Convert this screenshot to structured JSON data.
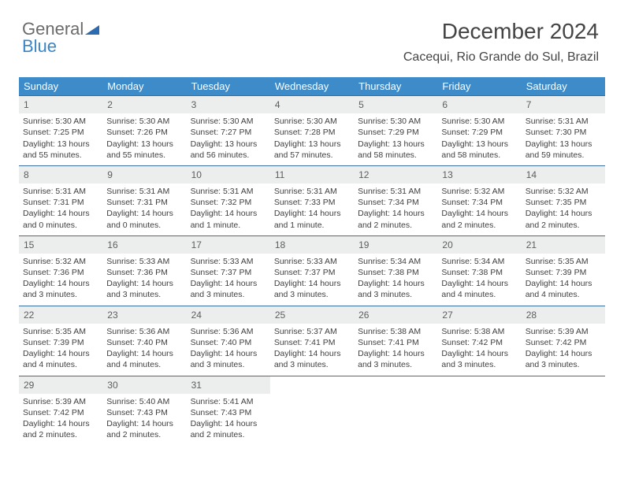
{
  "logo": {
    "text1": "General",
    "text2": "Blue",
    "icon_color": "#2c6bb0"
  },
  "title": "December 2024",
  "subtitle": "Cacequi, Rio Grande do Sul, Brazil",
  "colors": {
    "header_bg": "#3d8bc9",
    "header_text": "#ffffff",
    "daynum_bg": "#eceded",
    "border": "#3d6ea3",
    "text": "#404040"
  },
  "day_headers": [
    "Sunday",
    "Monday",
    "Tuesday",
    "Wednesday",
    "Thursday",
    "Friday",
    "Saturday"
  ],
  "weeks": [
    [
      {
        "n": "1",
        "sr": "5:30 AM",
        "ss": "7:25 PM",
        "dl": "13 hours and 55 minutes."
      },
      {
        "n": "2",
        "sr": "5:30 AM",
        "ss": "7:26 PM",
        "dl": "13 hours and 55 minutes."
      },
      {
        "n": "3",
        "sr": "5:30 AM",
        "ss": "7:27 PM",
        "dl": "13 hours and 56 minutes."
      },
      {
        "n": "4",
        "sr": "5:30 AM",
        "ss": "7:28 PM",
        "dl": "13 hours and 57 minutes."
      },
      {
        "n": "5",
        "sr": "5:30 AM",
        "ss": "7:29 PM",
        "dl": "13 hours and 58 minutes."
      },
      {
        "n": "6",
        "sr": "5:30 AM",
        "ss": "7:29 PM",
        "dl": "13 hours and 58 minutes."
      },
      {
        "n": "7",
        "sr": "5:31 AM",
        "ss": "7:30 PM",
        "dl": "13 hours and 59 minutes."
      }
    ],
    [
      {
        "n": "8",
        "sr": "5:31 AM",
        "ss": "7:31 PM",
        "dl": "14 hours and 0 minutes."
      },
      {
        "n": "9",
        "sr": "5:31 AM",
        "ss": "7:31 PM",
        "dl": "14 hours and 0 minutes."
      },
      {
        "n": "10",
        "sr": "5:31 AM",
        "ss": "7:32 PM",
        "dl": "14 hours and 1 minute."
      },
      {
        "n": "11",
        "sr": "5:31 AM",
        "ss": "7:33 PM",
        "dl": "14 hours and 1 minute."
      },
      {
        "n": "12",
        "sr": "5:31 AM",
        "ss": "7:34 PM",
        "dl": "14 hours and 2 minutes."
      },
      {
        "n": "13",
        "sr": "5:32 AM",
        "ss": "7:34 PM",
        "dl": "14 hours and 2 minutes."
      },
      {
        "n": "14",
        "sr": "5:32 AM",
        "ss": "7:35 PM",
        "dl": "14 hours and 2 minutes."
      }
    ],
    [
      {
        "n": "15",
        "sr": "5:32 AM",
        "ss": "7:36 PM",
        "dl": "14 hours and 3 minutes."
      },
      {
        "n": "16",
        "sr": "5:33 AM",
        "ss": "7:36 PM",
        "dl": "14 hours and 3 minutes."
      },
      {
        "n": "17",
        "sr": "5:33 AM",
        "ss": "7:37 PM",
        "dl": "14 hours and 3 minutes."
      },
      {
        "n": "18",
        "sr": "5:33 AM",
        "ss": "7:37 PM",
        "dl": "14 hours and 3 minutes."
      },
      {
        "n": "19",
        "sr": "5:34 AM",
        "ss": "7:38 PM",
        "dl": "14 hours and 3 minutes."
      },
      {
        "n": "20",
        "sr": "5:34 AM",
        "ss": "7:38 PM",
        "dl": "14 hours and 4 minutes."
      },
      {
        "n": "21",
        "sr": "5:35 AM",
        "ss": "7:39 PM",
        "dl": "14 hours and 4 minutes."
      }
    ],
    [
      {
        "n": "22",
        "sr": "5:35 AM",
        "ss": "7:39 PM",
        "dl": "14 hours and 4 minutes."
      },
      {
        "n": "23",
        "sr": "5:36 AM",
        "ss": "7:40 PM",
        "dl": "14 hours and 4 minutes."
      },
      {
        "n": "24",
        "sr": "5:36 AM",
        "ss": "7:40 PM",
        "dl": "14 hours and 3 minutes."
      },
      {
        "n": "25",
        "sr": "5:37 AM",
        "ss": "7:41 PM",
        "dl": "14 hours and 3 minutes."
      },
      {
        "n": "26",
        "sr": "5:38 AM",
        "ss": "7:41 PM",
        "dl": "14 hours and 3 minutes."
      },
      {
        "n": "27",
        "sr": "5:38 AM",
        "ss": "7:42 PM",
        "dl": "14 hours and 3 minutes."
      },
      {
        "n": "28",
        "sr": "5:39 AM",
        "ss": "7:42 PM",
        "dl": "14 hours and 3 minutes."
      }
    ],
    [
      {
        "n": "29",
        "sr": "5:39 AM",
        "ss": "7:42 PM",
        "dl": "14 hours and 2 minutes."
      },
      {
        "n": "30",
        "sr": "5:40 AM",
        "ss": "7:43 PM",
        "dl": "14 hours and 2 minutes."
      },
      {
        "n": "31",
        "sr": "5:41 AM",
        "ss": "7:43 PM",
        "dl": "14 hours and 2 minutes."
      },
      null,
      null,
      null,
      null
    ]
  ],
  "labels": {
    "sunrise": "Sunrise:",
    "sunset": "Sunset:",
    "daylight": "Daylight:"
  }
}
